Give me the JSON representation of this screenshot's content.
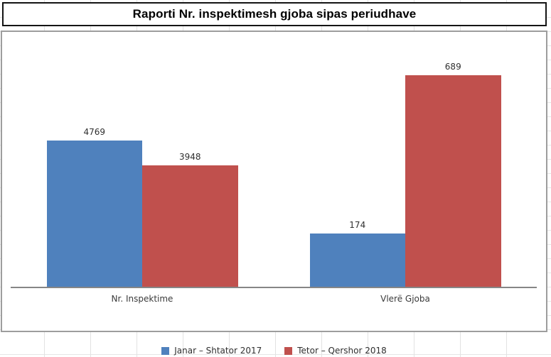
{
  "chart_data": {
    "type": "bar",
    "title": "Raporti Nr. inspektimesh gjoba sipas periudhave",
    "categories": [
      "Nr. Inspektime",
      "Vlerë Gjoba"
    ],
    "series": [
      {
        "name": "Janar – Shtator 2017",
        "color": "#4F81BD",
        "values": [
          4769,
          174
        ]
      },
      {
        "name": "Tetor – Qershor 2018",
        "color": "#C0504D",
        "values": [
          3948,
          689
        ]
      }
    ],
    "value_labels_shown": true,
    "legend_position": "bottom",
    "grid": false,
    "axes": {
      "tick_labels_visible": false,
      "category_scale_max": [
        8000,
        800
      ]
    }
  },
  "colors": {
    "series_blue": "#4F81BD",
    "series_red": "#C0504D",
    "title_border": "#141414",
    "chart_border": "#9D9D9D",
    "axis_line": "#868686",
    "label_text": "#2F2F2F",
    "sheet_gridline": "#E2E2E2"
  }
}
